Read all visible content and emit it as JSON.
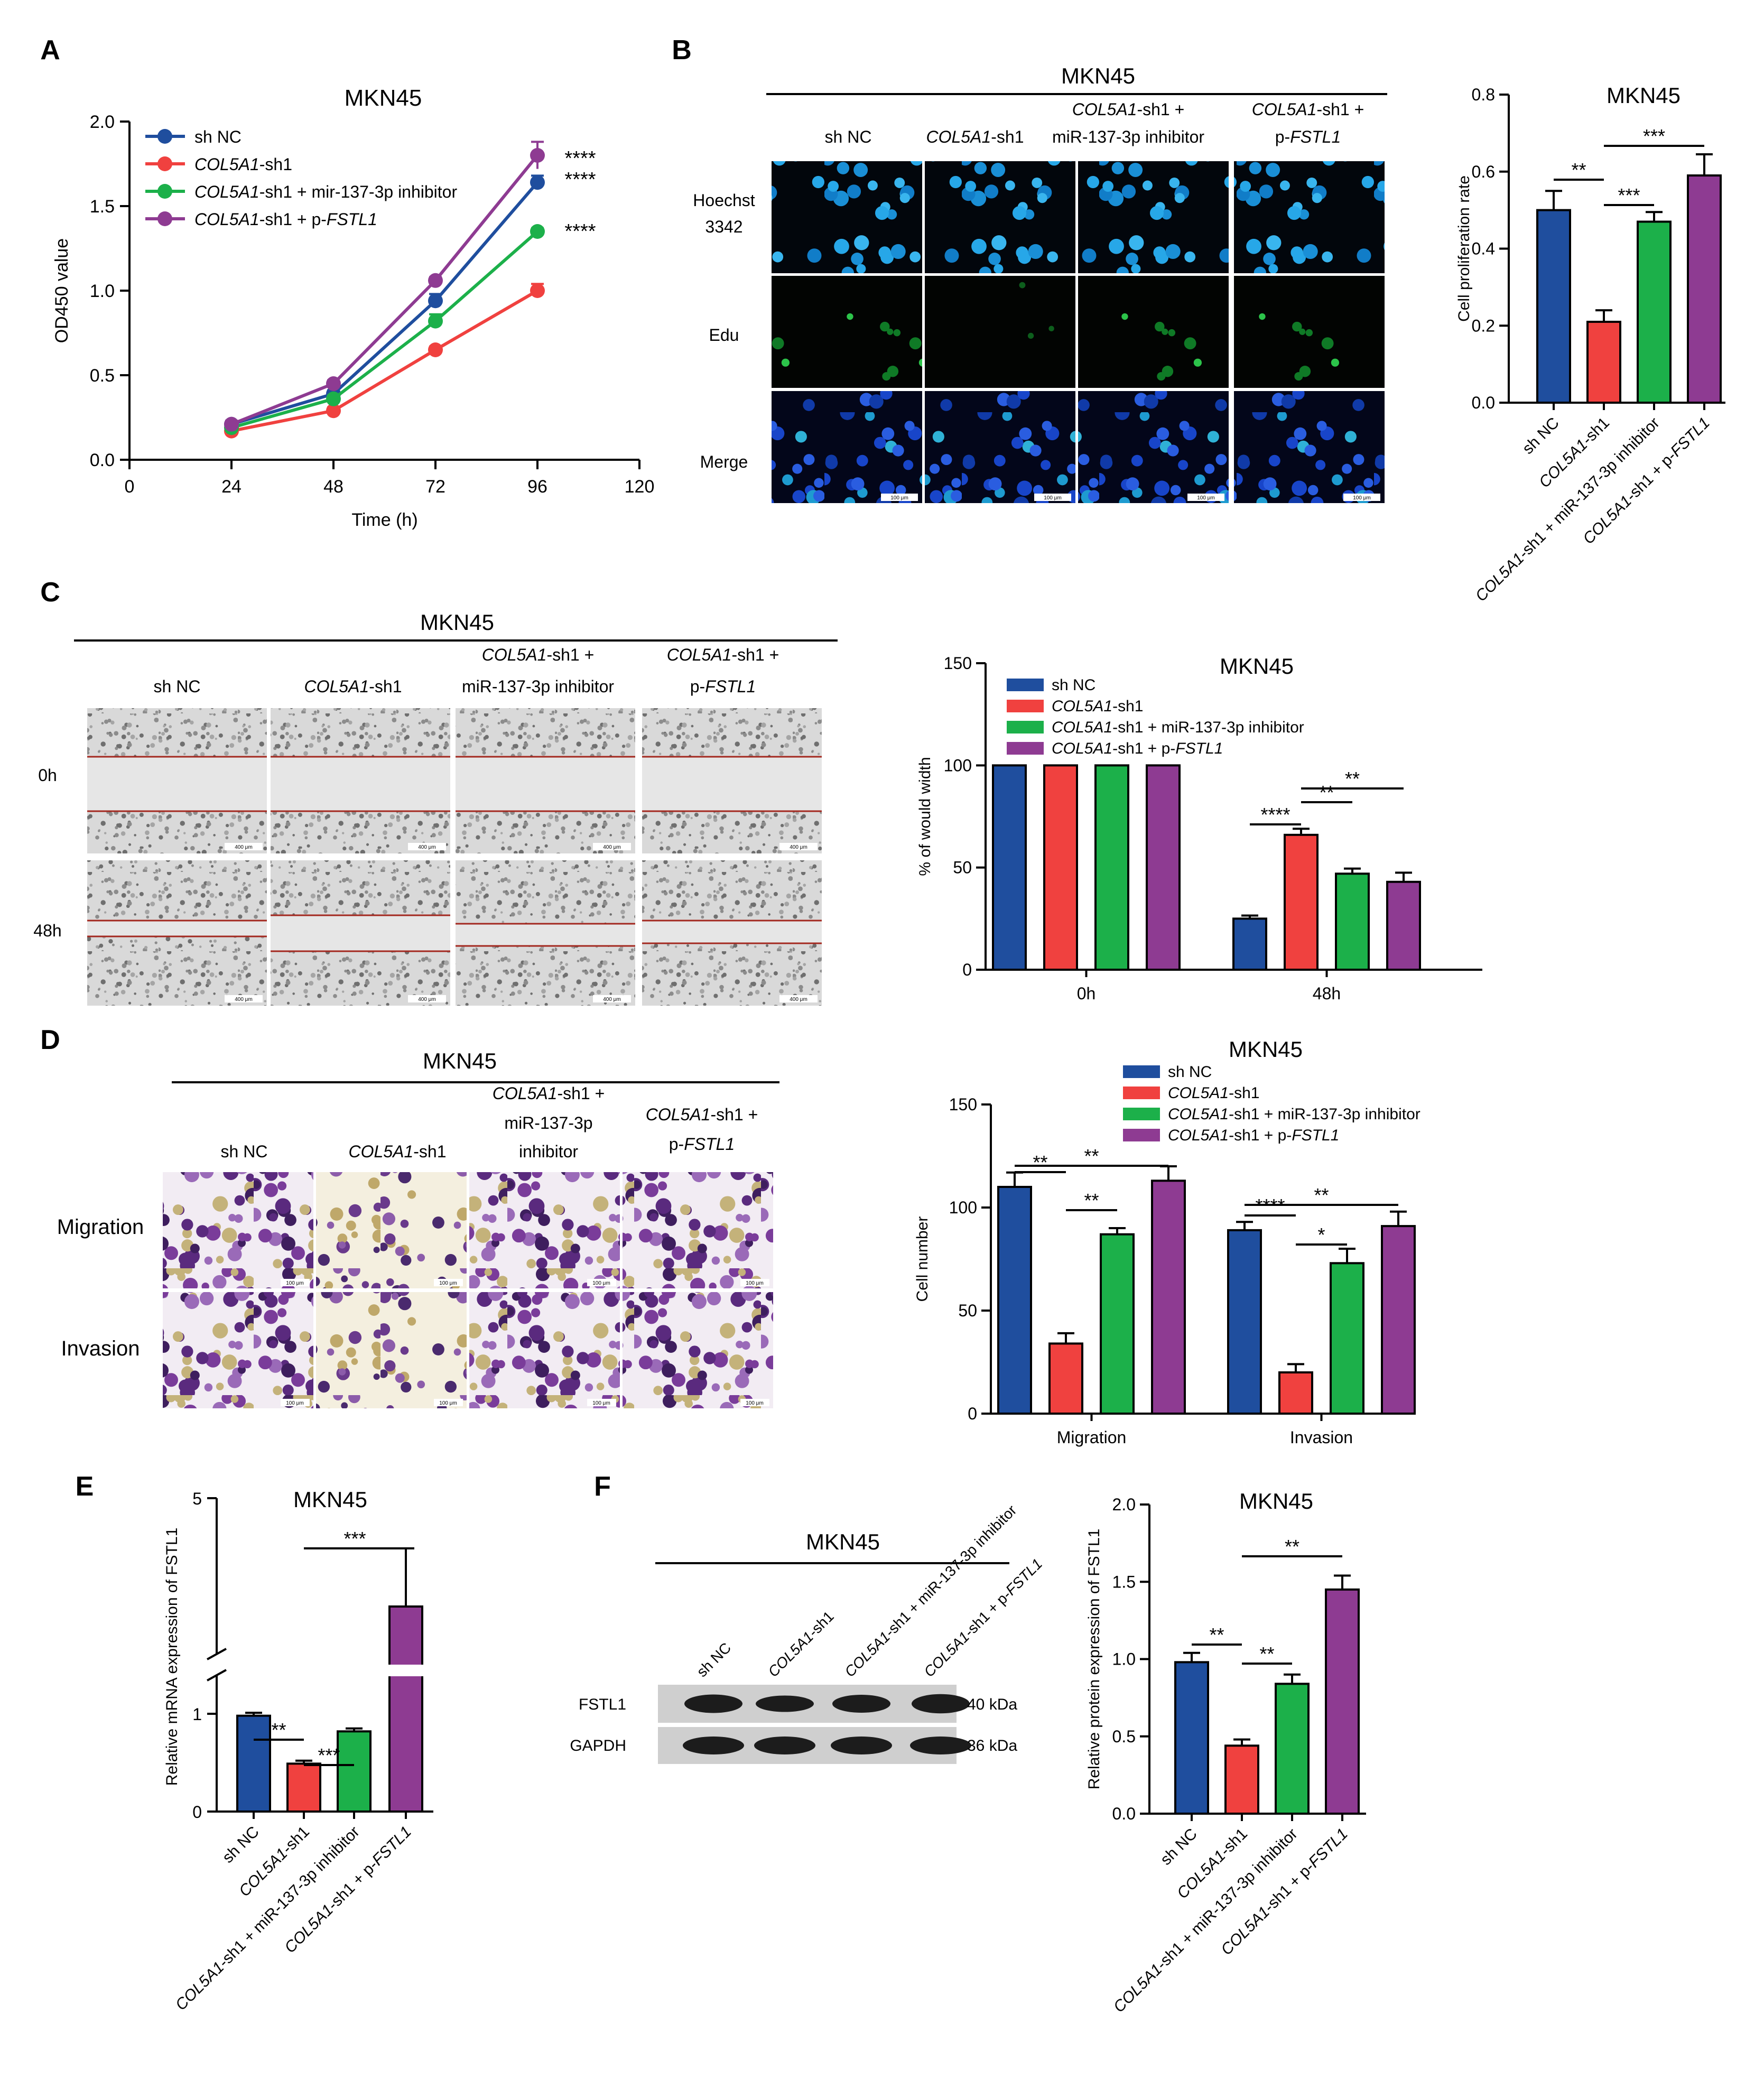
{
  "colors": {
    "shnc": "#1F4E9E",
    "col": "#F0413F",
    "inh": "#1CB04A",
    "pfs": "#8E3B92"
  },
  "groups": {
    "full": [
      [
        {
          "t": "sh NC",
          "i": false
        }
      ],
      [
        {
          "t": "COL5A1",
          "i": true
        },
        {
          "t": "-sh1",
          "i": false
        }
      ],
      [
        {
          "t": "COL5A1",
          "i": true
        },
        {
          "t": "-sh1 + miR-137-3p inhibitor",
          "i": false
        }
      ],
      [
        {
          "t": "COL5A1",
          "i": true
        },
        {
          "t": "-sh1 + p-",
          "i": false
        },
        {
          "t": "FSTL1",
          "i": true
        }
      ]
    ],
    "growth": [
      [
        {
          "t": "sh NC",
          "i": false
        }
      ],
      [
        {
          "t": "COL5A1",
          "i": true
        },
        {
          "t": "-sh1",
          "i": false
        }
      ],
      [
        {
          "t": "COL5A1",
          "i": true
        },
        {
          "t": "-sh1 + mir-137-3p inhibitor",
          "i": false
        }
      ],
      [
        {
          "t": "COL5A1",
          "i": true
        },
        {
          "t": "-sh1 + p-",
          "i": false
        },
        {
          "t": "FSTL1",
          "i": true
        }
      ]
    ]
  },
  "panels": {
    "A": "A",
    "B": "B",
    "C": "C",
    "D": "D",
    "E": "E",
    "F": "F"
  },
  "image_headers": {
    "cell_line": "MKN45",
    "shnc": "sh NC",
    "col_sh1": [
      {
        "t": "COL5A1",
        "i": true
      },
      {
        "t": "-sh1",
        "i": false
      }
    ],
    "col_sh1_plus": [
      {
        "t": "COL5A1",
        "i": true
      },
      {
        "t": "-sh1 +",
        "i": false
      }
    ],
    "inh": "miR-137-3p inhibitor",
    "inh_split": [
      "miR-137-3p",
      "inhibitor"
    ],
    "pfstl1": [
      {
        "t": "p-",
        "i": false
      },
      {
        "t": "FSTL1",
        "i": true
      }
    ],
    "rows_B": [
      "Hoechst",
      "3342",
      "Edu",
      "Merge"
    ],
    "rows_C": [
      "0h",
      "48h"
    ],
    "rows_D": [
      "Migration",
      "Invasion"
    ],
    "scale_100": "100 μm",
    "scale_400": "400 μm"
  },
  "western": {
    "title": "MKN45",
    "bands": [
      "FSTL1",
      "GAPDH"
    ],
    "sizes": [
      "40 kDa",
      "36 kDa"
    ]
  },
  "chart_data": [
    {
      "id": "A",
      "type": "line",
      "title": "MKN45",
      "xlabel": "Time (h)",
      "ylabel": "OD450 value",
      "xlim": [
        0,
        120
      ],
      "ylim": [
        0,
        2.0
      ],
      "xticks": [
        "0",
        "24",
        "48",
        "72",
        "96",
        "120"
      ],
      "yticks": [
        "0.0",
        "0.5",
        "1.0",
        "1.5",
        "2.0"
      ],
      "x": [
        24,
        48,
        72,
        96
      ],
      "series": [
        {
          "name": "sh NC",
          "values": [
            0.21,
            0.39,
            0.94,
            1.64
          ],
          "err": [
            0.02,
            0.02,
            0.04,
            0.04
          ]
        },
        {
          "name": "COL5A1-sh1",
          "values": [
            0.17,
            0.29,
            0.65,
            1.0
          ],
          "err": [
            0.02,
            0.02,
            0.02,
            0.04
          ]
        },
        {
          "name": "COL5A1-sh1 + mir-137-3p inhibitor",
          "values": [
            0.19,
            0.36,
            0.82,
            1.35
          ],
          "err": [
            0.02,
            0.02,
            0.04,
            0.02
          ]
        },
        {
          "name": "COL5A1-sh1 + p-FSTL1",
          "values": [
            0.21,
            0.45,
            1.06,
            1.8
          ],
          "err": [
            0.02,
            0.02,
            0.02,
            0.08
          ]
        }
      ],
      "annotations": [
        "****",
        "****",
        "****"
      ]
    },
    {
      "id": "B",
      "type": "bar",
      "title": "MKN45",
      "ylabel": "Cell proliferation rate",
      "ylim": [
        0,
        0.8
      ],
      "yticks": [
        "0.0",
        "0.2",
        "0.4",
        "0.6",
        "0.8"
      ],
      "categories": [
        "sh NC",
        "COL5A1-sh1",
        "COL5A1-sh1 + miR-137-3p inhibitor",
        "COL5A1-sh1 + p-FSTL1"
      ],
      "values": [
        0.5,
        0.21,
        0.47,
        0.59
      ],
      "err": [
        0.05,
        0.03,
        0.025,
        0.055
      ],
      "annotations": [
        "**",
        "***",
        "***"
      ]
    },
    {
      "id": "C",
      "type": "bar",
      "title": "MKN45",
      "ylabel": "% of would width",
      "ylim": [
        0,
        150
      ],
      "yticks": [
        "0",
        "50",
        "100",
        "150"
      ],
      "categories": [
        "0h",
        "48h"
      ],
      "series": [
        {
          "name": "sh NC",
          "values": [
            100,
            25
          ],
          "err": [
            0,
            1.5
          ]
        },
        {
          "name": "COL5A1-sh1",
          "values": [
            100,
            66
          ],
          "err": [
            0,
            3
          ]
        },
        {
          "name": "COL5A1-sh1 + miR-137-3p inhibitor",
          "values": [
            100,
            47
          ],
          "err": [
            0,
            2.5
          ]
        },
        {
          "name": "COL5A1-sh1 + p-FSTL1",
          "values": [
            100,
            43
          ],
          "err": [
            0,
            4.5
          ]
        }
      ],
      "annotations": [
        "****",
        "**",
        "**"
      ]
    },
    {
      "id": "D",
      "type": "bar",
      "title": "MKN45",
      "ylabel": "Cell number",
      "ylim": [
        0,
        150
      ],
      "yticks": [
        "0",
        "50",
        "100",
        "150"
      ],
      "categories": [
        "Migration",
        "Invasion"
      ],
      "series": [
        {
          "name": "sh NC",
          "values": [
            110,
            89
          ],
          "err": [
            7,
            4
          ]
        },
        {
          "name": "COL5A1-sh1",
          "values": [
            34,
            20
          ],
          "err": [
            5,
            4
          ]
        },
        {
          "name": "COL5A1-sh1 + miR-137-3p inhibitor",
          "values": [
            87,
            73
          ],
          "err": [
            3,
            7
          ]
        },
        {
          "name": "COL5A1-sh1 + p-FSTL1",
          "values": [
            113,
            91
          ],
          "err": [
            7,
            7
          ]
        }
      ],
      "annotations": [
        "**",
        "**",
        "**",
        "****",
        "**",
        "*"
      ]
    },
    {
      "id": "E",
      "type": "bar",
      "title": "MKN45",
      "ylabel": "Relative mRNA expression of FSTL1",
      "yticks": [
        "0",
        "1",
        "5"
      ],
      "y_break": true,
      "categories": [
        "sh NC",
        "COL5A1-sh1",
        "COL5A1-sh1 + miR-137-3p inhibitor",
        "COL5A1-sh1 + p-FSTL1"
      ],
      "values": [
        0.98,
        0.49,
        0.82,
        3.4
      ],
      "err": [
        0.03,
        0.03,
        0.03,
        0.9
      ],
      "annotations": [
        "**",
        "***",
        "***"
      ]
    },
    {
      "id": "F",
      "type": "bar",
      "title": "MKN45",
      "ylabel": "Relative protein expression of FSTL1",
      "ylim": [
        0,
        2.0
      ],
      "yticks": [
        "0.0",
        "0.5",
        "1.0",
        "1.5",
        "2.0"
      ],
      "categories": [
        "sh NC",
        "COL5A1-sh1",
        "COL5A1-sh1 + miR-137-3p inhibitor",
        "COL5A1-sh1 + p-FSTL1"
      ],
      "values": [
        0.98,
        0.44,
        0.84,
        1.45
      ],
      "err": [
        0.06,
        0.04,
        0.06,
        0.09
      ],
      "annotations": [
        "**",
        "**",
        "**"
      ]
    }
  ]
}
